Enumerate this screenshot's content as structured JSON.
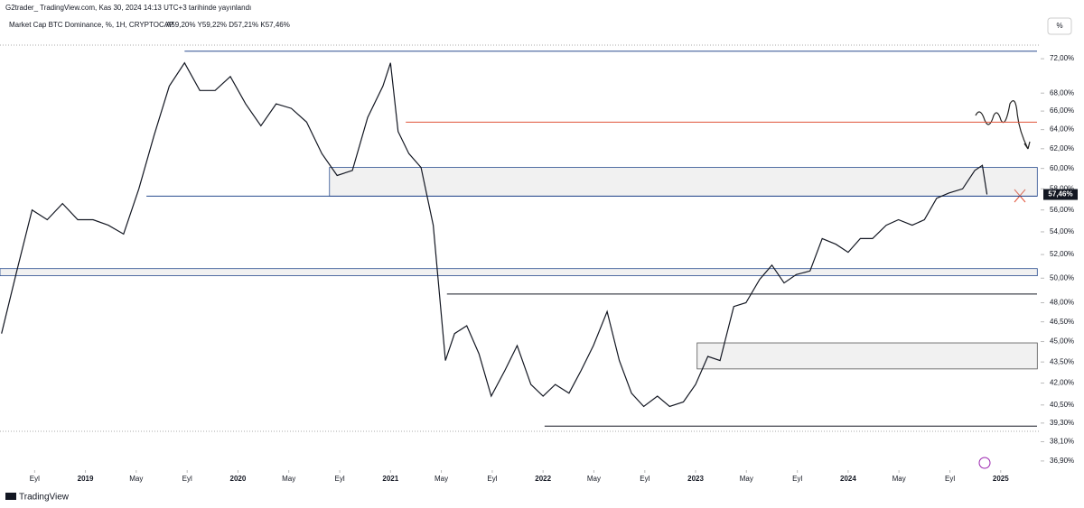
{
  "chart_data": {
    "type": "line",
    "publisher": "G2trader_ TradingView.com, Kas 30, 2024 14:13 UTC+3 tarihinde yayınlandı",
    "title": "Market Cap BTC Dominance, %, 1H, CRYPTOCAP",
    "ohlc": "A59,20%  Y59,22%  D57,21%  K57,46%",
    "scale_button": "%",
    "brand": "TradingView",
    "color": "#131722",
    "log_scale": true,
    "x": [
      2018.45,
      2018.55,
      2018.65,
      2018.75,
      2018.85,
      2018.95,
      2019.05,
      2019.15,
      2019.25,
      2019.35,
      2019.45,
      2019.55,
      2019.65,
      2019.75,
      2019.85,
      2019.95,
      2020.05,
      2020.15,
      2020.25,
      2020.35,
      2020.45,
      2020.55,
      2020.65,
      2020.75,
      2020.85,
      2020.95,
      2021.0,
      2021.05,
      2021.12,
      2021.2,
      2021.28,
      2021.36,
      2021.42,
      2021.5,
      2021.58,
      2021.66,
      2021.75,
      2021.83,
      2021.92,
      2022.0,
      2022.08,
      2022.17,
      2022.25,
      2022.33,
      2022.42,
      2022.5,
      2022.58,
      2022.66,
      2022.75,
      2022.83,
      2022.92,
      2023.0,
      2023.08,
      2023.16,
      2023.25,
      2023.33,
      2023.42,
      2023.5,
      2023.58,
      2023.66,
      2023.75,
      2023.83,
      2023.92,
      2024.0,
      2024.08,
      2024.16,
      2024.25,
      2024.33,
      2024.42,
      2024.5,
      2024.58,
      2024.66,
      2024.75,
      2024.83,
      2024.88,
      2024.91
    ],
    "values": [
      45.6,
      50.6,
      56.0,
      55.1,
      56.6,
      55.1,
      55.1,
      54.6,
      53.8,
      58.0,
      63.4,
      68.8,
      71.5,
      68.3,
      68.3,
      69.9,
      66.8,
      64.4,
      66.8,
      66.3,
      64.8,
      61.5,
      59.3,
      59.8,
      65.3,
      68.8,
      71.5,
      63.8,
      61.5,
      60.1,
      54.6,
      43.6,
      45.6,
      46.2,
      44.1,
      41.1,
      42.9,
      44.7,
      41.9,
      41.1,
      41.9,
      41.3,
      42.9,
      44.7,
      47.3,
      43.6,
      41.3,
      40.4,
      41.1,
      40.4,
      40.7,
      41.9,
      43.9,
      43.6,
      47.7,
      48.0,
      49.9,
      51.1,
      49.6,
      50.3,
      50.6,
      53.4,
      52.9,
      52.2,
      53.4,
      53.4,
      54.6,
      55.1,
      54.6,
      55.1,
      57.1,
      57.6,
      58.0,
      59.8,
      60.3,
      57.46
    ],
    "price_label": {
      "value": 57.46,
      "label": "57,46%"
    },
    "xlim": [
      2018.44,
      2025.25
    ],
    "xticks": [
      {
        "value": 2018.667,
        "label": "Eyl"
      },
      2019,
      {
        "value": 2019.333,
        "label": "May"
      },
      {
        "value": 2019.667,
        "label": "Eyl"
      },
      2020,
      {
        "value": 2020.333,
        "label": "May"
      },
      {
        "value": 2020.667,
        "label": "Eyl"
      },
      2021,
      {
        "value": 2021.333,
        "label": "May"
      },
      {
        "value": 2021.667,
        "label": "Eyl"
      },
      2022,
      {
        "value": 2022.333,
        "label": "May"
      },
      {
        "value": 2022.667,
        "label": "Eyl"
      },
      2023,
      {
        "value": 2023.333,
        "label": "May"
      },
      {
        "value": 2023.667,
        "label": "Eyl"
      },
      2024,
      {
        "value": 2024.333,
        "label": "May"
      },
      {
        "value": 2024.667,
        "label": "Eyl"
      },
      2025
    ],
    "ylim": [
      36.4,
      74.2
    ],
    "yticks": [
      {
        "value": 72,
        "label": "72,00%"
      },
      {
        "value": 68,
        "label": "68,00%"
      },
      {
        "value": 66,
        "label": "66,00%"
      },
      {
        "value": 64,
        "label": "64,00%"
      },
      {
        "value": 62,
        "label": "62,00%"
      },
      {
        "value": 60,
        "label": "60,00%"
      },
      {
        "value": 58,
        "label": "58,00%"
      },
      {
        "value": 56,
        "label": "56,00%"
      },
      {
        "value": 54,
        "label": "54,00%"
      },
      {
        "value": 52,
        "label": "52,00%"
      },
      {
        "value": 50,
        "label": "50,00%"
      },
      {
        "value": 48,
        "label": "48,00%"
      },
      {
        "value": 46.5,
        "label": "46,50%"
      },
      {
        "value": 45,
        "label": "45,00%"
      },
      {
        "value": 43.5,
        "label": "43,50%"
      },
      {
        "value": 42,
        "label": "42,00%"
      },
      {
        "value": 40.5,
        "label": "40,50%"
      },
      {
        "value": 39.3,
        "label": "39,30%"
      },
      {
        "value": 38.1,
        "label": "38,10%"
      },
      {
        "value": 36.9,
        "label": "36,90%"
      }
    ],
    "hlines": [
      {
        "y": 72.9,
        "x0": 2019.65,
        "color": "#2a4d8f"
      },
      {
        "y": 64.8,
        "x0": 2021.1,
        "color": "#e0533a"
      },
      {
        "y": 57.3,
        "x0": 2019.4,
        "color": "#2a4d8f"
      },
      {
        "y": 48.7,
        "x0": 2021.37,
        "color": "#131722"
      },
      {
        "y": 39.1,
        "x0": 2022.01,
        "color": "#131722"
      }
    ],
    "boxes": [
      {
        "x": [
          2020.6,
          2025.24
        ],
        "y": [
          57.3,
          60.1
        ],
        "color": "#2a4d8f"
      },
      {
        "x": [
          2018.44,
          2025.24
        ],
        "y": [
          50.2,
          50.8
        ],
        "color": "#2a4d8f"
      },
      {
        "x": [
          2023.01,
          2025.24
        ],
        "y": [
          43.0,
          44.9
        ],
        "color": "#555555"
      }
    ]
  }
}
